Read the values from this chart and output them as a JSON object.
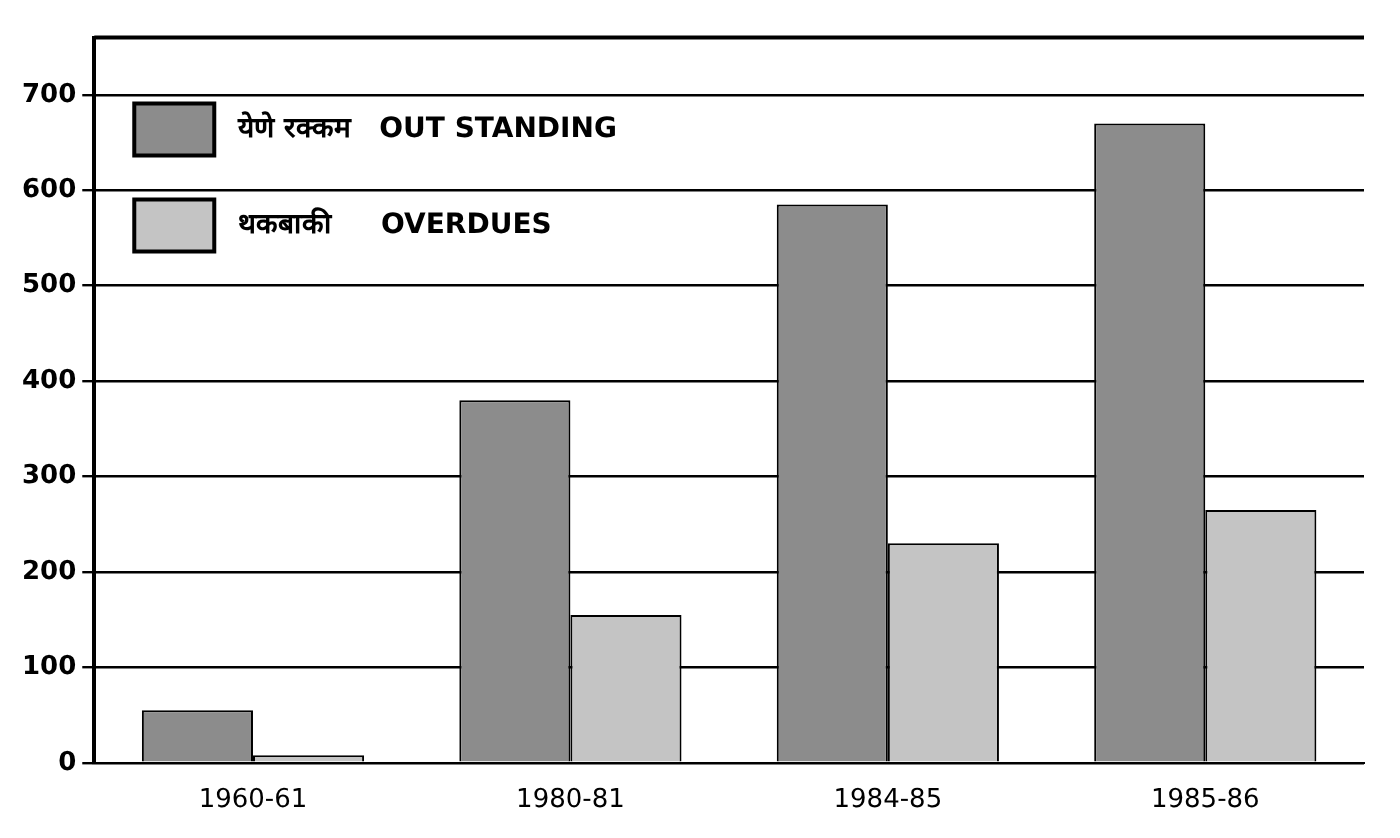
{
  "chart_data": {
    "type": "bar",
    "categories": [
      "1960-61",
      "1980-81",
      "1984-85",
      "1985-86"
    ],
    "series": [
      {
        "name": "येणे रक्कम   OUT STANDING",
        "color": "#8c8c8c",
        "values": [
          55,
          380,
          585,
          670
        ]
      },
      {
        "name": "थकबाकी     OVERDUES",
        "color": "#c4c4c4",
        "values": [
          8,
          155,
          230,
          265
        ]
      }
    ],
    "ylim": [
      0,
      760
    ],
    "yticks": [
      0,
      100,
      200,
      300,
      400,
      500,
      600,
      700
    ],
    "grid": "y",
    "legend": "top left"
  }
}
